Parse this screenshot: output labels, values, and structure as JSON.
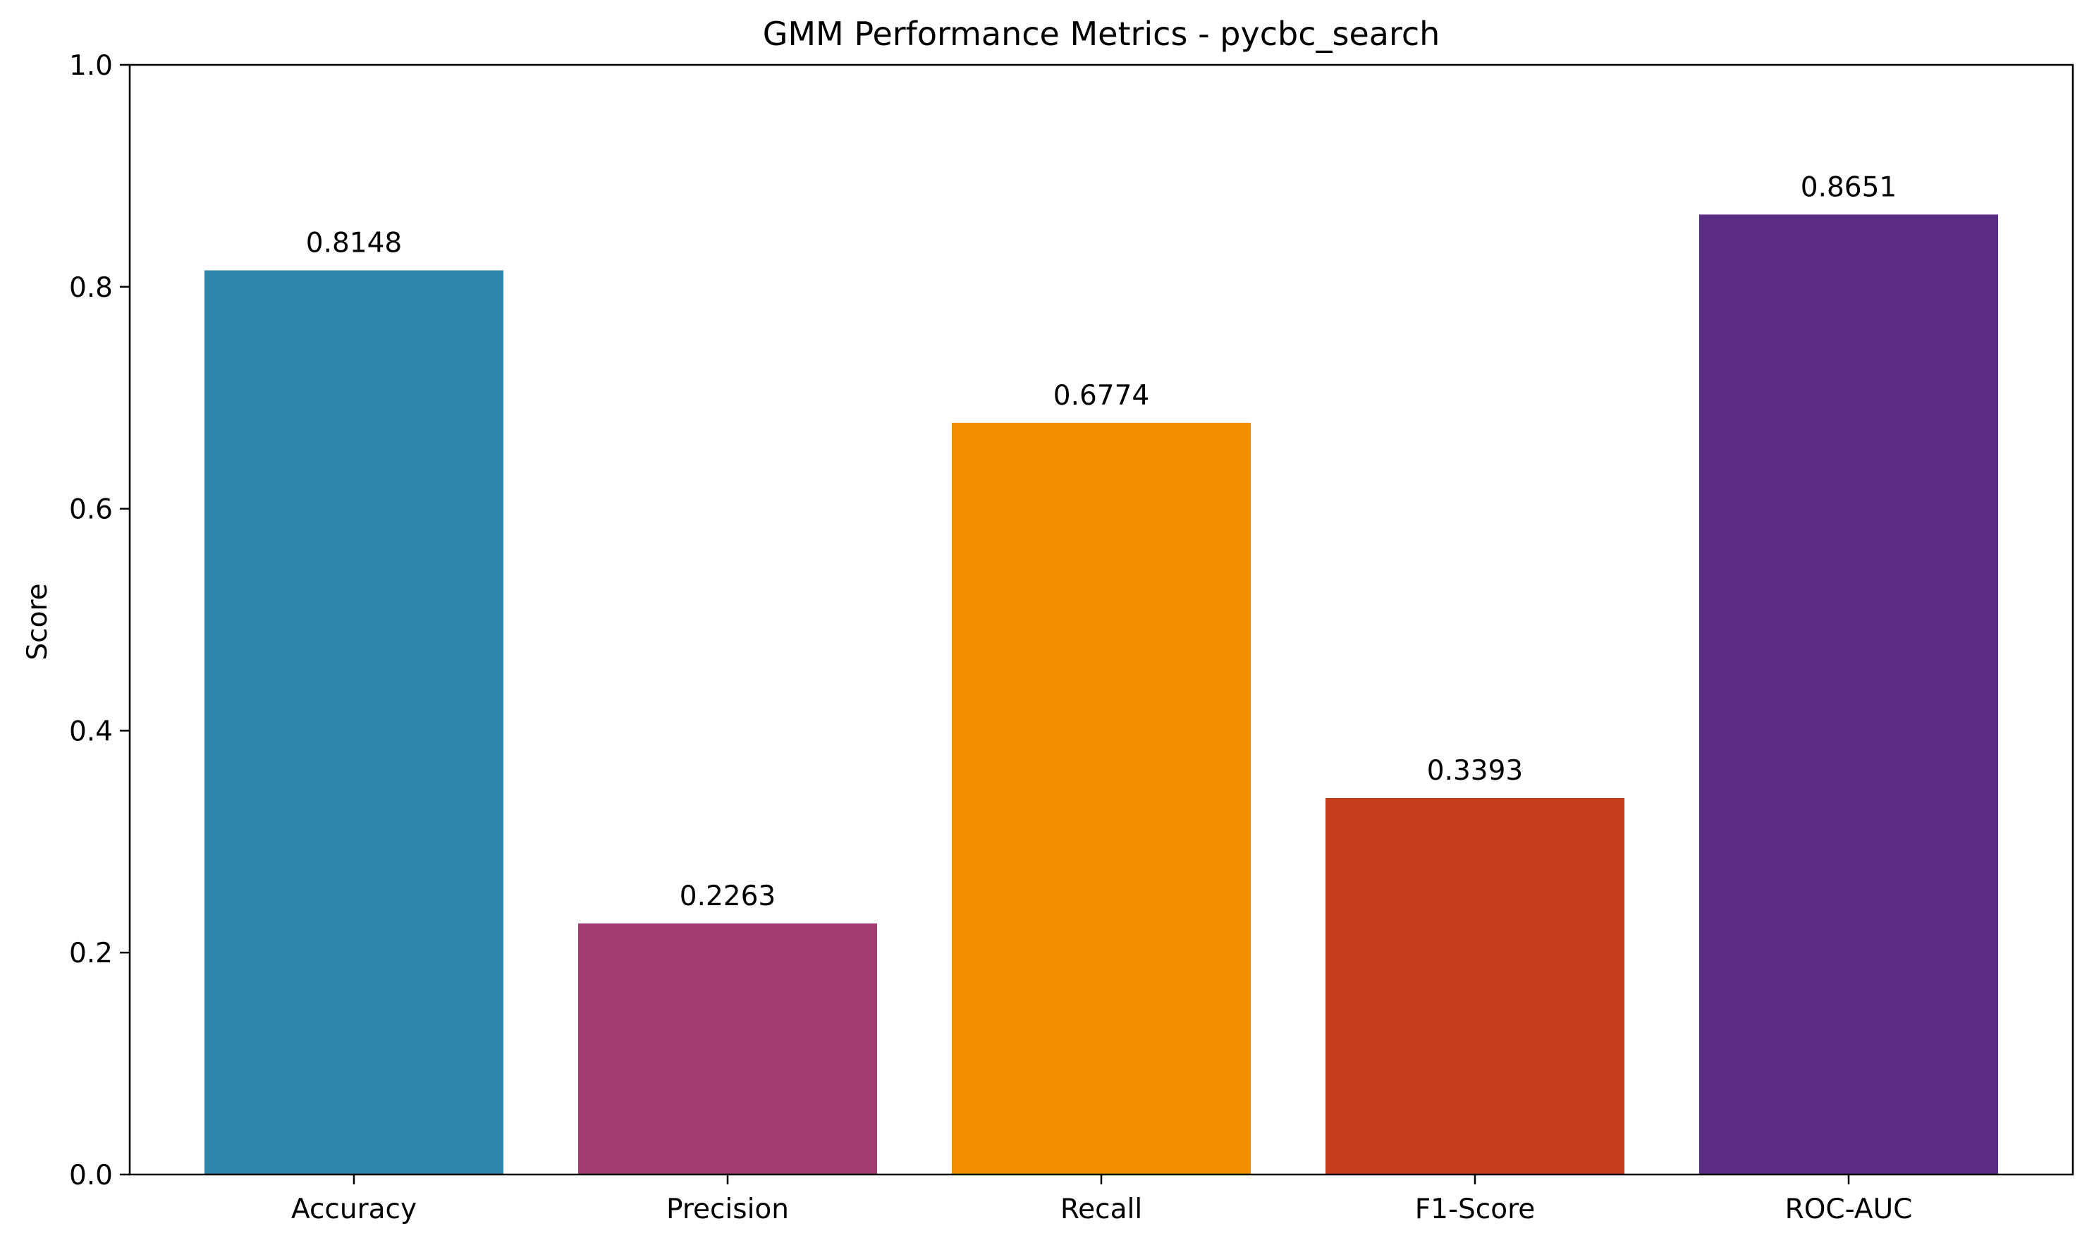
{
  "chart_data": {
    "type": "bar",
    "title": "GMM Performance Metrics - pycbc_search",
    "xlabel": "",
    "ylabel": "Score",
    "ylim": [
      0,
      1.0
    ],
    "yticks": [
      0.0,
      0.2,
      0.4,
      0.6,
      0.8,
      1.0
    ],
    "ytick_labels": [
      "0.0",
      "0.2",
      "0.4",
      "0.6",
      "0.8",
      "1.0"
    ],
    "grid": false,
    "categories": [
      "Accuracy",
      "Precision",
      "Recall",
      "F1-Score",
      "ROC-AUC"
    ],
    "values": [
      0.8148,
      0.2263,
      0.6774,
      0.3393,
      0.8651
    ],
    "value_labels": [
      "0.8148",
      "0.2263",
      "0.6774",
      "0.3393",
      "0.8651"
    ],
    "colors": [
      "#2E86AB",
      "#A23B72",
      "#F18F01",
      "#C73E1D",
      "#5B2D82"
    ]
  }
}
